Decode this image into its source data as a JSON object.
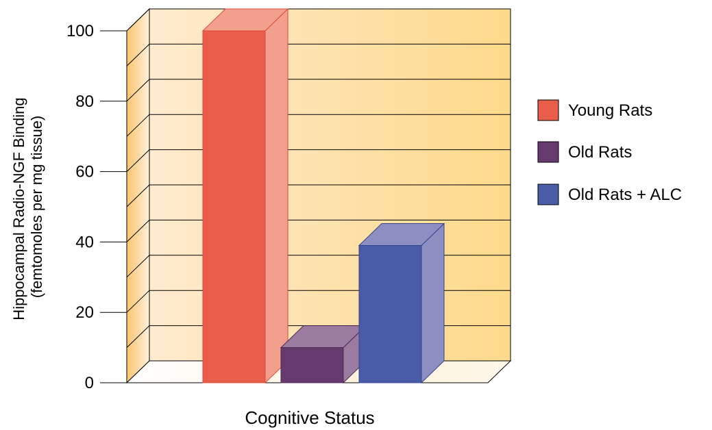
{
  "chart_data": {
    "type": "bar",
    "style": "3d",
    "categories": [
      "Young Rats",
      "Old Rats",
      "Old Rats + ALC"
    ],
    "values": [
      100,
      10,
      39
    ],
    "xlabel": "Cognitive Status",
    "ylabel_lines": [
      "Hippocampal Radio-NGF Binding",
      "(femtomoles per mg tissue)"
    ],
    "ylim": [
      0,
      100
    ],
    "yticks": [
      "0",
      "20",
      "40",
      "60",
      "80",
      "100"
    ],
    "grid": true,
    "legend": {
      "placement": "right",
      "entries": [
        "Young Rats",
        "Old Rats",
        "Old Rats + ALC"
      ]
    },
    "colors": {
      "bars": [
        "#E95E4B",
        "#663A6E",
        "#4A5BA7"
      ],
      "bar_sides": [
        "#F2A08D",
        "#9B7CA0",
        "#8D8FC2"
      ],
      "bar_strokes": [
        "#E0483C",
        "#4E2A56",
        "#36448C"
      ],
      "background_light": "#FFEBCF",
      "background_dark": "#FDD98A"
    }
  }
}
